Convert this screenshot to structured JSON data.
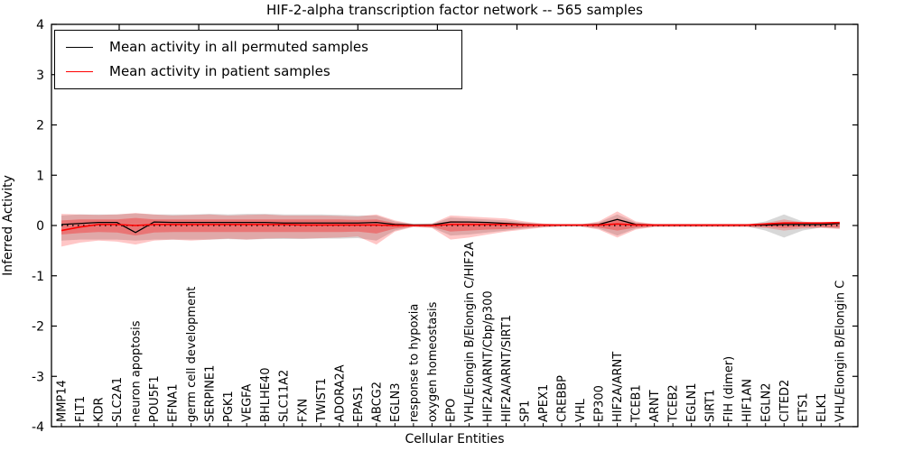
{
  "figure": {
    "title": "HIF-2-alpha transcription factor network -- 565 samples",
    "xlabel": "Cellular Entities",
    "ylabel": "Inferred Activity",
    "legend": [
      {
        "label": "Mean activity in all permuted samples",
        "color": "#000000"
      },
      {
        "label": "Mean activity in patient samples",
        "color": "#ff0000"
      }
    ]
  },
  "chart_data": {
    "type": "line",
    "title": "HIF-2-alpha transcription factor network -- 565 samples",
    "xlabel": "Cellular Entities",
    "ylabel": "Inferred Activity",
    "ylim": [
      -4,
      4
    ],
    "yticks": [
      4,
      3,
      2,
      1,
      0,
      -1,
      -2,
      -3,
      -4
    ],
    "grid": false,
    "legend_position": "upper left",
    "zero_line": {
      "style": "dotted",
      "color": "#000000",
      "y": 0
    },
    "categories": [
      "MMP14",
      "FLT1",
      "KDR",
      "SLC2A1",
      "neuron apoptosis",
      "POU5F1",
      "EFNA1",
      "germ cell development",
      "SERPINE1",
      "PGK1",
      "VEGFA",
      "BHLHE40",
      "SLC11A2",
      "FXN",
      "TWIST1",
      "ADORA2A",
      "EPAS1",
      "ABCG2",
      "EGLN3",
      "response to hypoxia",
      "oxygen homeostasis",
      "EPO",
      "VHL/Elongin B/Elongin C/HIF2A",
      "HIF2A/ARNT/Cbp/p300",
      "HIF2A/ARNT/SIRT1",
      "SP1",
      "APEX1",
      "CREBBP",
      "VHL",
      "EP300",
      "HIF2A/ARNT",
      "TCEB1",
      "ARNT",
      "TCEB2",
      "EGLN1",
      "SIRT1",
      "FIH (dimer)",
      "HIF1AN",
      "EGLN2",
      "CITED2",
      "ETS1",
      "ELK1",
      "VHL/Elongin B/Elongin C"
    ],
    "series": [
      {
        "name": "Mean activity in all permuted samples",
        "color": "#000000",
        "values": [
          0.02,
          0.04,
          0.06,
          0.06,
          -0.14,
          0.07,
          0.06,
          0.06,
          0.06,
          0.06,
          0.06,
          0.06,
          0.05,
          0.05,
          0.05,
          0.05,
          0.05,
          0.06,
          0.02,
          0.01,
          0.01,
          0.07,
          0.07,
          0.06,
          0.04,
          0.02,
          0.01,
          0.01,
          0.01,
          0.02,
          0.12,
          0.02,
          0.01,
          0.01,
          0.01,
          0.01,
          0.01,
          0.01,
          0.01,
          0.02,
          0.02,
          0.02,
          0.04
        ]
      },
      {
        "name": "Mean activity in patient samples",
        "color": "#ff0000",
        "values": [
          -0.1,
          -0.03,
          0.02,
          0.02,
          0.0,
          0.02,
          0.02,
          0.02,
          0.02,
          0.02,
          0.02,
          0.02,
          0.02,
          0.01,
          0.01,
          0.01,
          0.01,
          0.01,
          0.0,
          0.0,
          0.0,
          0.02,
          0.02,
          0.02,
          0.02,
          0.01,
          0.01,
          0.01,
          0.01,
          0.01,
          0.03,
          0.01,
          0.01,
          0.01,
          0.01,
          0.01,
          0.01,
          0.01,
          0.03,
          0.05,
          0.05,
          0.05,
          0.06
        ]
      }
    ],
    "bands": [
      {
        "name": "permuted-samples-spread",
        "color": "#999999",
        "opacity": 0.38,
        "top": [
          0.2,
          0.22,
          0.22,
          0.22,
          0.24,
          0.22,
          0.22,
          0.22,
          0.23,
          0.22,
          0.23,
          0.23,
          0.22,
          0.22,
          0.22,
          0.21,
          0.2,
          0.2,
          0.08,
          0.02,
          0.03,
          0.16,
          0.14,
          0.12,
          0.1,
          0.06,
          0.03,
          0.02,
          0.02,
          0.06,
          0.22,
          0.06,
          0.02,
          0.02,
          0.02,
          0.02,
          0.02,
          0.02,
          0.08,
          0.22,
          0.08,
          0.04,
          0.06
        ],
        "bottom": [
          -0.3,
          -0.28,
          -0.28,
          -0.28,
          -0.3,
          -0.28,
          -0.28,
          -0.28,
          -0.28,
          -0.27,
          -0.28,
          -0.27,
          -0.27,
          -0.27,
          -0.26,
          -0.26,
          -0.25,
          -0.3,
          -0.1,
          -0.02,
          -0.04,
          -0.2,
          -0.18,
          -0.14,
          -0.1,
          -0.06,
          -0.03,
          -0.02,
          -0.02,
          -0.06,
          -0.2,
          -0.06,
          -0.02,
          -0.02,
          -0.02,
          -0.02,
          -0.02,
          -0.02,
          -0.1,
          -0.24,
          -0.1,
          -0.04,
          -0.06
        ]
      },
      {
        "name": "patient-samples-outer-spread",
        "color": "#ff0000",
        "opacity": 0.22,
        "top": [
          0.23,
          0.22,
          0.21,
          0.22,
          0.25,
          0.22,
          0.2,
          0.21,
          0.22,
          0.2,
          0.21,
          0.22,
          0.2,
          0.2,
          0.2,
          0.19,
          0.18,
          0.22,
          0.1,
          0.03,
          0.04,
          0.2,
          0.18,
          0.16,
          0.14,
          0.08,
          0.04,
          0.02,
          0.02,
          0.08,
          0.28,
          0.08,
          0.03,
          0.03,
          0.03,
          0.03,
          0.03,
          0.03,
          0.05,
          0.12,
          0.06,
          0.05,
          0.07
        ],
        "bottom": [
          -0.42,
          -0.34,
          -0.3,
          -0.32,
          -0.38,
          -0.3,
          -0.28,
          -0.3,
          -0.28,
          -0.26,
          -0.28,
          -0.26,
          -0.25,
          -0.26,
          -0.25,
          -0.24,
          -0.22,
          -0.38,
          -0.12,
          -0.03,
          -0.05,
          -0.28,
          -0.24,
          -0.18,
          -0.12,
          -0.08,
          -0.04,
          -0.02,
          -0.02,
          -0.08,
          -0.24,
          -0.08,
          -0.03,
          -0.03,
          -0.03,
          -0.03,
          -0.03,
          -0.03,
          -0.05,
          -0.1,
          -0.06,
          -0.05,
          -0.07
        ]
      },
      {
        "name": "patient-samples-inner-spread",
        "color": "#ff0000",
        "opacity": 0.3,
        "top": [
          0.1,
          0.12,
          0.12,
          0.12,
          0.15,
          0.12,
          0.12,
          0.12,
          0.12,
          0.12,
          0.12,
          0.12,
          0.12,
          0.12,
          0.12,
          0.12,
          0.11,
          0.12,
          0.05,
          0.02,
          0.02,
          0.09,
          0.08,
          0.07,
          0.06,
          0.04,
          0.02,
          0.01,
          0.01,
          0.04,
          0.14,
          0.04,
          0.02,
          0.02,
          0.02,
          0.02,
          0.02,
          0.02,
          0.03,
          0.06,
          0.03,
          0.03,
          0.04
        ],
        "bottom": [
          -0.18,
          -0.15,
          -0.13,
          -0.14,
          -0.2,
          -0.14,
          -0.13,
          -0.13,
          -0.13,
          -0.13,
          -0.13,
          -0.13,
          -0.13,
          -0.13,
          -0.13,
          -0.13,
          -0.12,
          -0.16,
          -0.06,
          -0.02,
          -0.03,
          -0.12,
          -0.1,
          -0.08,
          -0.07,
          -0.04,
          -0.02,
          -0.01,
          -0.01,
          -0.04,
          -0.1,
          -0.04,
          -0.02,
          -0.02,
          -0.02,
          -0.02,
          -0.02,
          -0.02,
          -0.03,
          -0.05,
          -0.03,
          -0.03,
          -0.04
        ]
      }
    ]
  }
}
